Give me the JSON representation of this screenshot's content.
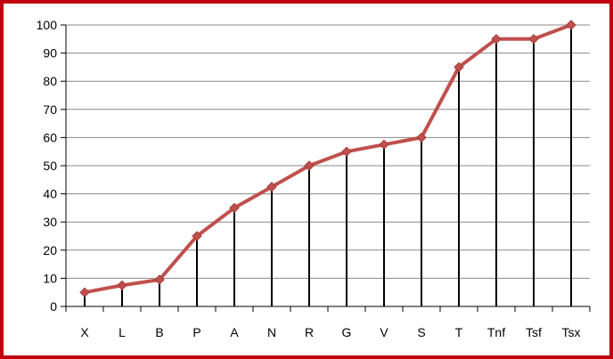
{
  "chart_data": {
    "type": "line",
    "title": "",
    "xlabel": "",
    "ylabel": "",
    "categories": [
      "X",
      "L",
      "B",
      "P",
      "A",
      "N",
      "R",
      "G",
      "V",
      "S",
      "T",
      "Tnf",
      "Tsf",
      "Tsx"
    ],
    "series": [
      {
        "values": [
          5,
          7.5,
          9.5,
          25,
          35,
          42.5,
          50,
          55,
          57.5,
          60,
          85,
          95,
          95,
          100
        ]
      }
    ],
    "ylim": [
      0,
      100
    ],
    "yticks": [
      0,
      10,
      20,
      30,
      40,
      50,
      60,
      70,
      80,
      90,
      100
    ],
    "grid": true,
    "legend": "none",
    "drop_lines": true,
    "colors": {
      "frame": "#c0000e",
      "line": "#c0504d",
      "marker": "#c0504d",
      "drop_line": "#000000",
      "grid": "#888888",
      "axis": "#000000"
    }
  }
}
